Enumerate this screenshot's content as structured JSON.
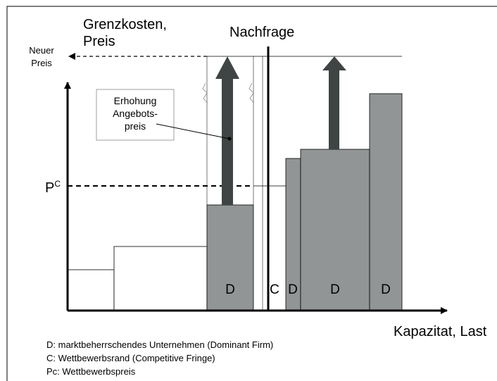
{
  "axis": {
    "y_label": [
      "Grenzkosten,",
      "Preis"
    ],
    "x_label": "Kapazitat, Last"
  },
  "demand_label": "Nachfrage",
  "new_price_label": [
    "Neuer",
    "Preis"
  ],
  "competitive_price_label": {
    "base": "P",
    "sup": "C"
  },
  "callout": [
    "Erhohung",
    "Angebots-",
    "preis"
  ],
  "block_labels": [
    "D",
    "C",
    "D",
    "D",
    "D"
  ],
  "legend": [
    "D: marktbeherrschendes Unternehmen (Dominant Firm)",
    "C: Wettbewerbsrand (Competitive Fringe)",
    "Pc: Wettbewerbspreis"
  ]
}
